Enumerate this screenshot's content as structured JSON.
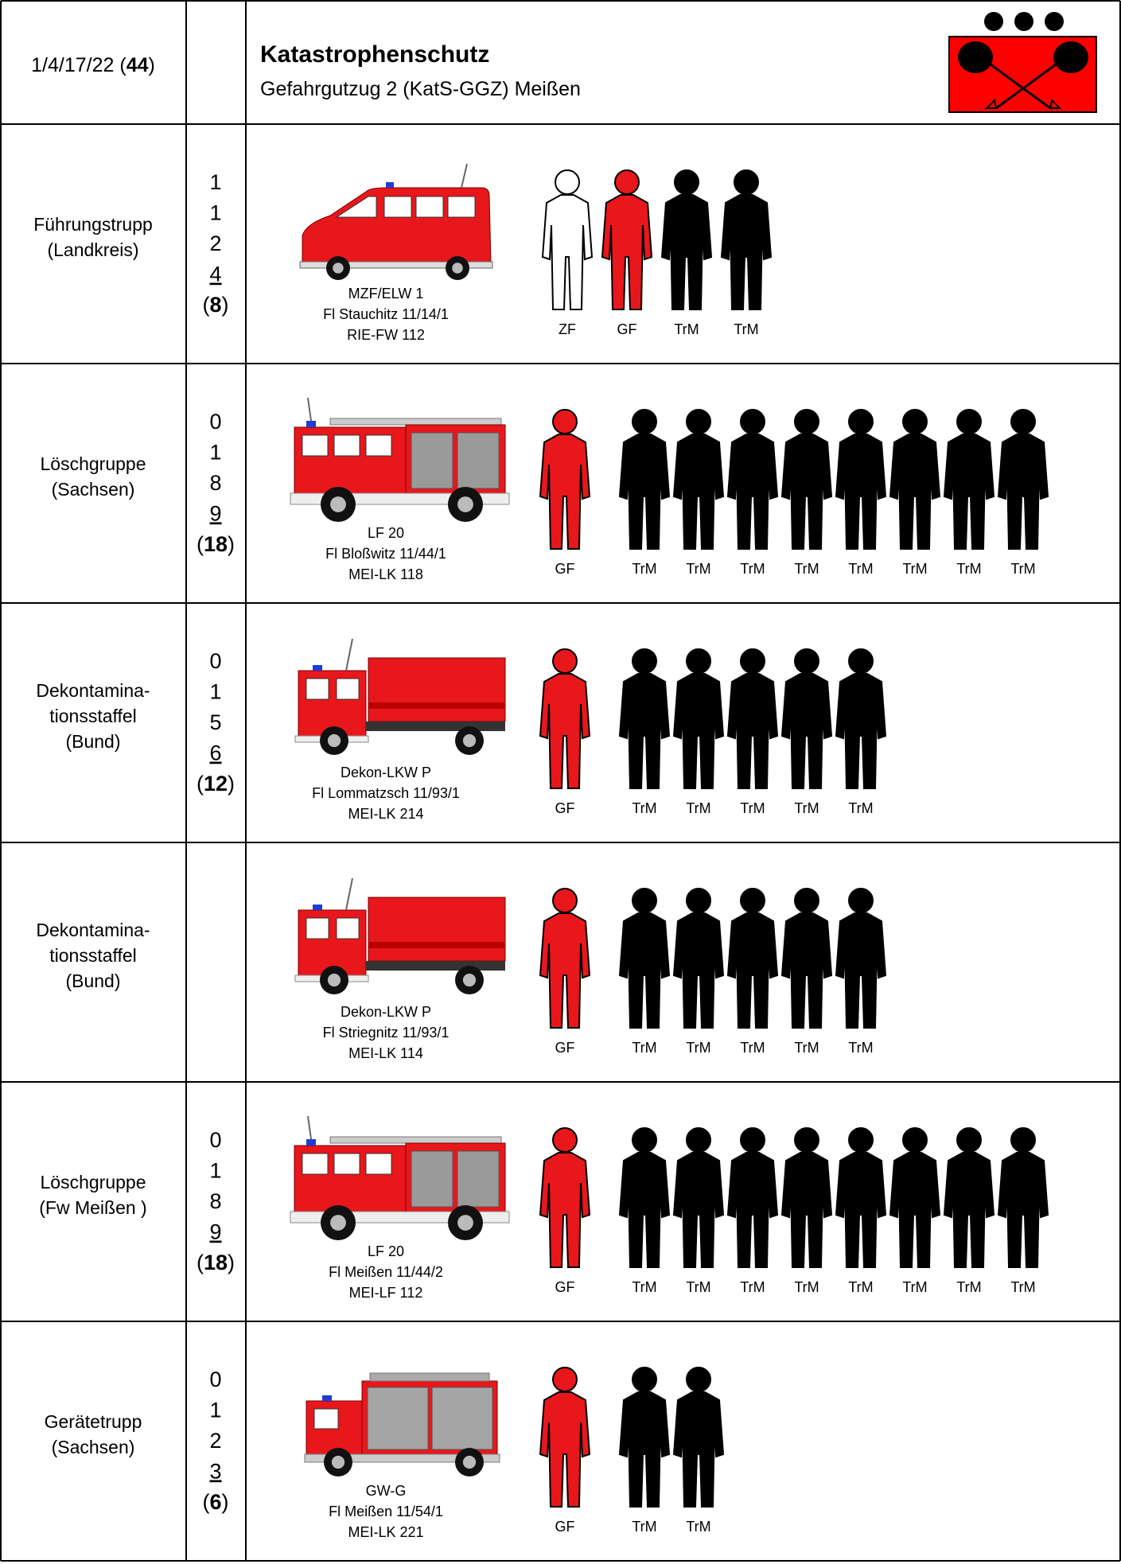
{
  "header": {
    "strength": [
      "1/4/17/22 (",
      "44",
      ")"
    ],
    "title": "Katastrophenschutz",
    "subtitle": "Gefahrgutzug 2 (KatS-GGZ) Meißen"
  },
  "rows": [
    {
      "unit": [
        "Führungstrupp",
        "(Landkreis)"
      ],
      "strength": [
        "1",
        "1",
        "2",
        "4"
      ],
      "total": [
        "(",
        "8",
        ")"
      ],
      "vehicle": [
        "MZF/ELW 1",
        "Fl Stauchitz 11/14/1",
        "RIE-FW 112"
      ],
      "crew": [
        {
          "label": "ZF",
          "color": "#ffffff"
        },
        {
          "label": "GF",
          "color": "#e8171b"
        },
        {
          "label": "TrM",
          "color": "#000000"
        },
        {
          "label": "TrM",
          "color": "#000000"
        }
      ]
    },
    {
      "unit": [
        "Löschgruppe",
        "(Sachsen)"
      ],
      "strength": [
        "0",
        "1",
        "8",
        "9"
      ],
      "total": [
        "(",
        "18",
        ")"
      ],
      "vehicle": [
        "LF 20",
        "Fl Bloßwitz 11/44/1",
        "MEI-LK 118"
      ],
      "crew": [
        {
          "label": "GF",
          "color": "#e8171b"
        },
        {
          "label": "TrM",
          "color": "#000000"
        },
        {
          "label": "TrM",
          "color": "#000000"
        },
        {
          "label": "TrM",
          "color": "#000000"
        },
        {
          "label": "TrM",
          "color": "#000000"
        },
        {
          "label": "TrM",
          "color": "#000000"
        },
        {
          "label": "TrM",
          "color": "#000000"
        },
        {
          "label": "TrM",
          "color": "#000000"
        },
        {
          "label": "TrM",
          "color": "#000000"
        }
      ]
    },
    {
      "unit": [
        "Dekontamina-",
        "tionsstaffel",
        "(Bund)"
      ],
      "strength": [
        "0",
        "1",
        "5",
        "6"
      ],
      "total": [
        "(",
        "12",
        ")"
      ],
      "vehicle": [
        "Dekon-LKW P",
        "Fl Lommatzsch 11/93/1",
        "MEI-LK 214"
      ],
      "crew": [
        {
          "label": "GF",
          "color": "#e8171b"
        },
        {
          "label": "TrM",
          "color": "#000000"
        },
        {
          "label": "TrM",
          "color": "#000000"
        },
        {
          "label": "TrM",
          "color": "#000000"
        },
        {
          "label": "TrM",
          "color": "#000000"
        },
        {
          "label": "TrM",
          "color": "#000000"
        }
      ]
    },
    {
      "unit": [
        "Dekontamina-",
        "tionsstaffel",
        "(Bund)"
      ],
      "vehicle": [
        "Dekon-LKW P",
        "Fl Striegnitz 11/93/1",
        "MEI-LK 114"
      ],
      "crew": [
        {
          "label": "GF",
          "color": "#e8171b"
        },
        {
          "label": "TrM",
          "color": "#000000"
        },
        {
          "label": "TrM",
          "color": "#000000"
        },
        {
          "label": "TrM",
          "color": "#000000"
        },
        {
          "label": "TrM",
          "color": "#000000"
        },
        {
          "label": "TrM",
          "color": "#000000"
        }
      ]
    },
    {
      "unit": [
        "Löschgruppe",
        "(Fw Meißen )"
      ],
      "strength": [
        "0",
        "1",
        "8",
        "9"
      ],
      "total": [
        "(",
        "18",
        ")"
      ],
      "vehicle": [
        "LF 20",
        "Fl Meißen 11/44/2",
        "MEI-LF 112"
      ],
      "crew": [
        {
          "label": "GF",
          "color": "#e8171b"
        },
        {
          "label": "TrM",
          "color": "#000000"
        },
        {
          "label": "TrM",
          "color": "#000000"
        },
        {
          "label": "TrM",
          "color": "#000000"
        },
        {
          "label": "TrM",
          "color": "#000000"
        },
        {
          "label": "TrM",
          "color": "#000000"
        },
        {
          "label": "TrM",
          "color": "#000000"
        },
        {
          "label": "TrM",
          "color": "#000000"
        },
        {
          "label": "TrM",
          "color": "#000000"
        }
      ]
    },
    {
      "unit": [
        "Gerätetrupp",
        "(Sachsen)"
      ],
      "strength": [
        "0",
        "1",
        "2",
        "3"
      ],
      "total": [
        "(",
        "6",
        ")"
      ],
      "vehicle": [
        "GW-G",
        "Fl Meißen 11/54/1",
        "MEI-LK 221"
      ],
      "crew": [
        {
          "label": "GF",
          "color": "#e8171b"
        },
        {
          "label": "TrM",
          "color": "#000000"
        },
        {
          "label": "TrM",
          "color": "#000000"
        }
      ]
    }
  ]
}
